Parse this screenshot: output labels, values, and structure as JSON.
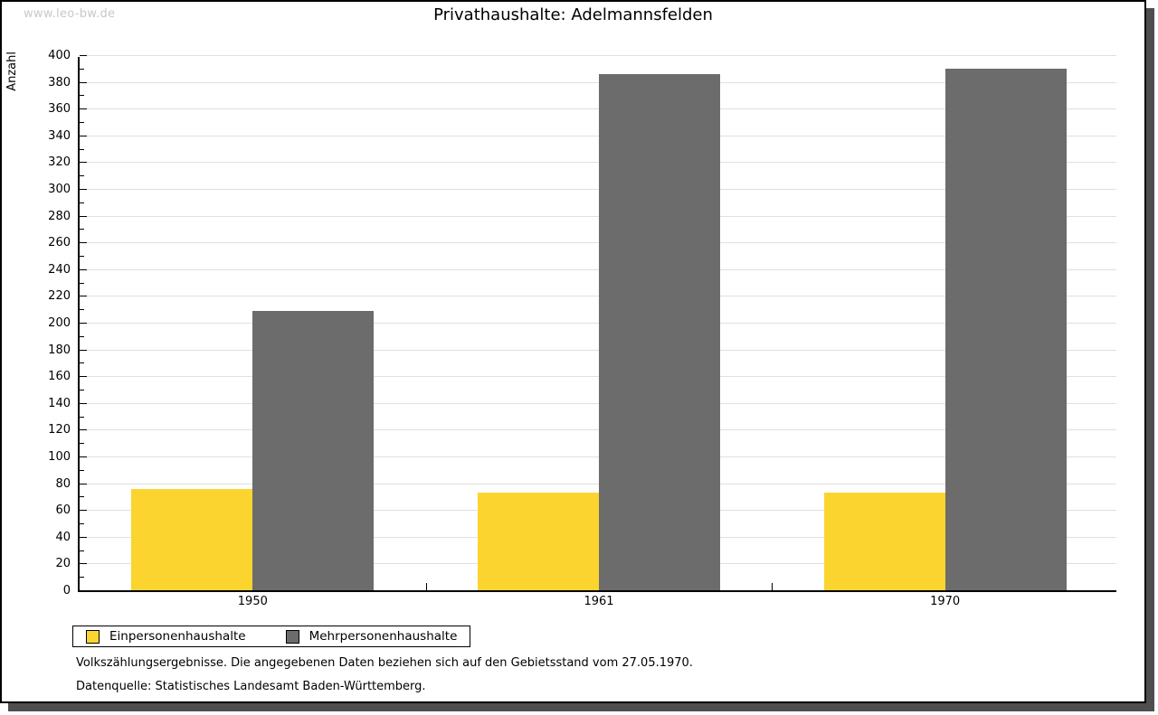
{
  "watermark": "www.leo-bw.de",
  "title": "Privathaushalte: Adelmannsfelden",
  "chart_data": {
    "type": "bar",
    "title": "Privathaushalte: Adelmannsfelden",
    "xlabel": "",
    "ylabel": "Anzahl",
    "categories": [
      "1950",
      "1961",
      "1970"
    ],
    "series": [
      {
        "name": "Einpersonenhaushalte",
        "color": "#FCD42F",
        "values": [
          76,
          73,
          73
        ]
      },
      {
        "name": "Mehrpersonenhaushalte",
        "color": "#6C6C6C",
        "values": [
          209,
          386,
          390
        ]
      }
    ],
    "ylim": [
      0,
      400
    ],
    "y_major_step": 20,
    "y_minor_step": 10,
    "grid": true,
    "legend_position": "bottom-left"
  },
  "footnotes": [
    "Volkszählungsergebnisse. Die angegebenen Daten beziehen sich auf den Gebietsstand vom 27.05.1970.",
    "Datenquelle: Statistisches Landesamt Baden-Württemberg."
  ],
  "colors": {
    "bar_yellow": "#FCD42F",
    "bar_gray": "#6C6C6C",
    "gridline": "#E0E0E0",
    "watermark": "#C8C8C8",
    "frame_shadow": "#4E4E4E",
    "axis": "#000000"
  }
}
